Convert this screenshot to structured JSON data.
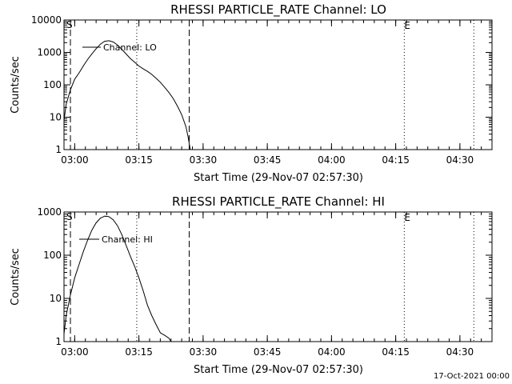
{
  "footer_date": "17-Oct-2021 00:00",
  "chart_data": [
    {
      "type": "line",
      "title": "RHESSI PARTICLE_RATE Channel: LO",
      "xlabel": "Start Time (29-Nov-07 02:57:30)",
      "ylabel": "Counts/sec",
      "y_scale": "log",
      "ylim": [
        1,
        10000
      ],
      "xlim": [
        "02:57:30",
        "04:37:30"
      ],
      "y_ticks": [
        "1",
        "10",
        "100",
        "1000",
        "10000"
      ],
      "x_ticks": [
        "03:00",
        "03:15",
        "03:30",
        "03:45",
        "04:00",
        "04:15",
        "04:30"
      ],
      "legend": {
        "position": "top-left",
        "entries": [
          "Channel: LO"
        ]
      },
      "flags": {
        "s_label": "S",
        "e_label": "E"
      },
      "vlines": {
        "dashed": [
          "02:59:00",
          "03:26:45"
        ],
        "dotted": [
          "03:14:30",
          "04:17:00",
          "04:33:15"
        ]
      },
      "series": [
        {
          "name": "Channel: LO",
          "points": [
            [
              "02:57:30",
              8
            ],
            [
              "02:58:00",
              25
            ],
            [
              "02:59:00",
              70
            ],
            [
              "03:00:00",
              150
            ],
            [
              "03:01:00",
              230
            ],
            [
              "03:02:00",
              380
            ],
            [
              "03:03:00",
              600
            ],
            [
              "03:04:00",
              900
            ],
            [
              "03:05:00",
              1300
            ],
            [
              "03:06:00",
              1800
            ],
            [
              "03:07:00",
              2200
            ],
            [
              "03:08:00",
              2300
            ],
            [
              "03:09:00",
              2100
            ],
            [
              "03:10:00",
              1700
            ],
            [
              "03:11:00",
              1250
            ],
            [
              "03:12:00",
              900
            ],
            [
              "03:13:00",
              650
            ],
            [
              "03:14:00",
              500
            ],
            [
              "03:15:00",
              380
            ],
            [
              "03:16:00",
              310
            ],
            [
              "03:17:00",
              260
            ],
            [
              "03:18:00",
              210
            ],
            [
              "03:19:00",
              160
            ],
            [
              "03:20:00",
              120
            ],
            [
              "03:21:00",
              85
            ],
            [
              "03:22:00",
              58
            ],
            [
              "03:23:00",
              38
            ],
            [
              "03:24:00",
              22
            ],
            [
              "03:25:00",
              12
            ],
            [
              "03:26:00",
              5
            ],
            [
              "03:26:30",
              2.5
            ],
            [
              "03:27:00",
              1
            ]
          ]
        }
      ]
    },
    {
      "type": "line",
      "title": "RHESSI PARTICLE_RATE Channel: HI",
      "xlabel": "Start Time (29-Nov-07 02:57:30)",
      "ylabel": "Counts/sec",
      "y_scale": "log",
      "ylim": [
        1,
        1000
      ],
      "xlim": [
        "02:57:30",
        "04:37:30"
      ],
      "y_ticks": [
        "1",
        "10",
        "100",
        "1000"
      ],
      "x_ticks": [
        "03:00",
        "03:15",
        "03:30",
        "03:45",
        "04:00",
        "04:15",
        "04:30"
      ],
      "legend": {
        "position": "top-left",
        "entries": [
          "Channel: HI"
        ]
      },
      "flags": {
        "s_label": "S",
        "e_label": "E"
      },
      "vlines": {
        "dashed": [
          "02:59:00",
          "03:26:45"
        ],
        "dotted": [
          "03:14:30",
          "04:17:00",
          "04:33:15"
        ]
      },
      "series": [
        {
          "name": "Channel: HI",
          "points": [
            [
              "02:57:30",
              1.5
            ],
            [
              "02:58:00",
              4
            ],
            [
              "02:59:00",
              12
            ],
            [
              "03:00:00",
              30
            ],
            [
              "03:01:00",
              60
            ],
            [
              "03:02:00",
              120
            ],
            [
              "03:03:00",
              220
            ],
            [
              "03:04:00",
              380
            ],
            [
              "03:05:00",
              560
            ],
            [
              "03:06:00",
              720
            ],
            [
              "03:07:00",
              800
            ],
            [
              "03:08:00",
              780
            ],
            [
              "03:09:00",
              660
            ],
            [
              "03:10:00",
              480
            ],
            [
              "03:11:00",
              300
            ],
            [
              "03:12:00",
              170
            ],
            [
              "03:13:00",
              95
            ],
            [
              "03:14:00",
              55
            ],
            [
              "03:15:00",
              30
            ],
            [
              "03:16:00",
              15
            ],
            [
              "03:17:00",
              7
            ],
            [
              "03:18:00",
              4
            ],
            [
              "03:19:00",
              2.5
            ],
            [
              "03:20:00",
              1.6
            ],
            [
              "03:21:00",
              1.4
            ],
            [
              "03:22:00",
              1.2
            ],
            [
              "03:22:30",
              1.0
            ],
            [
              "03:23:00",
              1.0
            ]
          ]
        }
      ]
    }
  ]
}
